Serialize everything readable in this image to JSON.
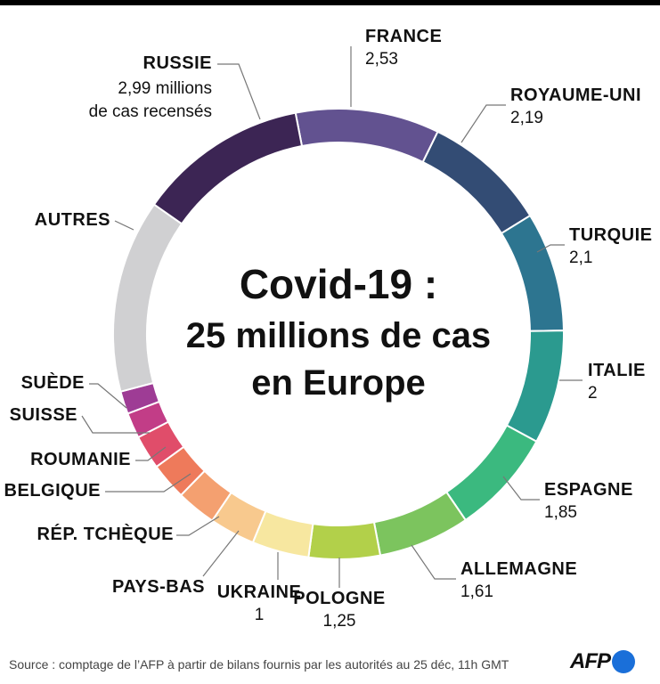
{
  "chart_data": {
    "type": "pie",
    "title_lines": [
      "Covid-19 :",
      "25 millions de cas",
      "en Europe"
    ],
    "unit_note": "millions de cas recensés",
    "slices": [
      {
        "label": "France",
        "display": "FRANCE",
        "value": 2.53,
        "value_text": "2,53",
        "color": "#625290"
      },
      {
        "label": "Royaume-Uni",
        "display": "ROYAUME-UNI",
        "value": 2.19,
        "value_text": "2,19",
        "color": "#334c74"
      },
      {
        "label": "Turquie",
        "display": "TURQUIE",
        "value": 2.1,
        "value_text": "2,1",
        "color": "#2d7590"
      },
      {
        "label": "Italie",
        "display": "ITALIE",
        "value": 2,
        "value_text": "2",
        "color": "#2b9a8f"
      },
      {
        "label": "Espagne",
        "display": "ESPAGNE",
        "value": 1.85,
        "value_text": "1,85",
        "color": "#3bb97f"
      },
      {
        "label": "Allemagne",
        "display": "ALLEMAGNE",
        "value": 1.61,
        "value_text": "1,61",
        "color": "#7cc45e"
      },
      {
        "label": "Pologne",
        "display": "POLOGNE",
        "value": 1.25,
        "value_text": "1,25",
        "color": "#b2d04a"
      },
      {
        "label": "Ukraine",
        "display": "UKRAINE",
        "value": 1,
        "value_text": "1",
        "color": "#f7e7a0"
      },
      {
        "label": "Pays-Bas",
        "display": "PAYS-BAS",
        "value": 0.8,
        "value_text": "",
        "color": "#f8c98e"
      },
      {
        "label": "Rép. tchèque",
        "display": "RÉP. TCHÈQUE",
        "value": 0.7,
        "value_text": "",
        "color": "#f4a070"
      },
      {
        "label": "Belgique",
        "display": "BELGIQUE",
        "value": 0.65,
        "value_text": "",
        "color": "#ee7a5b"
      },
      {
        "label": "Roumanie",
        "display": "ROUMANIE",
        "value": 0.6,
        "value_text": "",
        "color": "#e04d6a"
      },
      {
        "label": "Suisse",
        "display": "SUISSE",
        "value": 0.45,
        "value_text": "",
        "color": "#c23d87"
      },
      {
        "label": "Suède",
        "display": "SUÈDE",
        "value": 0.4,
        "value_text": "",
        "color": "#9e3c95"
      },
      {
        "label": "Autres",
        "display": "AUTRES",
        "value": 3.4,
        "value_text": "",
        "color": "#d0d0d2"
      },
      {
        "label": "Russie",
        "display": "RUSSIE",
        "value": 2.99,
        "value_text": "2,99 millions",
        "color": "#3c2554"
      }
    ]
  },
  "footer": {
    "source": "Source : comptage de l’AFP à partir de bilans  fournis par les autorités au 25 déc, 11h GMT",
    "logo_text": "AFP"
  }
}
